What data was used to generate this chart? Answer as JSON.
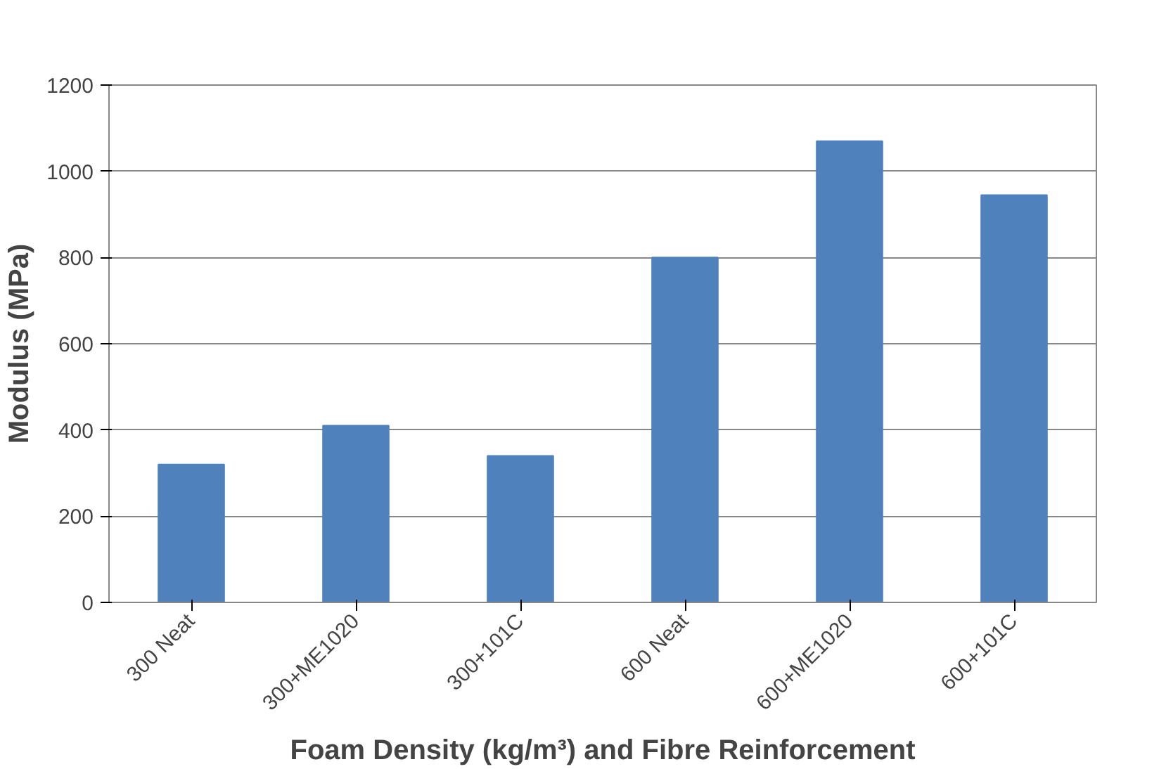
{
  "chart_data": {
    "type": "bar",
    "xlabel": "Foam Density (kg/m³) and Fibre Reinforcement",
    "ylabel": "Modulus (MPa)",
    "categories": [
      "300 Neat",
      "300+ME1020",
      "300+101C",
      "600 Neat",
      "600+ME1020",
      "600+101C"
    ],
    "values": [
      320,
      410,
      340,
      800,
      1070,
      945
    ],
    "color": "#4f81bd",
    "ylim": [
      0,
      1200
    ],
    "yticks": [
      0,
      200,
      400,
      600,
      800,
      1000,
      1200
    ],
    "grid": "y"
  }
}
